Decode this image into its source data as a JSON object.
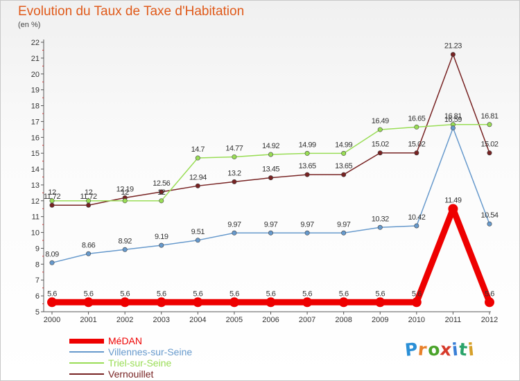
{
  "title": "Evolution du Taux de Taxe d'Habitation",
  "subtitle": "(en %)",
  "logo": {
    "letters": [
      "P",
      "r",
      "o",
      "x",
      "i",
      "t",
      "i"
    ],
    "colors": [
      "#2a8fd6",
      "#e8802a",
      "#4aa32a",
      "#d63a2a",
      "#3a7fd6",
      "#2aa36a",
      "#d6a02a"
    ]
  },
  "chart_data": {
    "type": "line",
    "title": "Evolution du Taux de Taxe d'Habitation",
    "ylabel": "(en %)",
    "xlabel": "",
    "x": [
      "2000",
      "2001",
      "2002",
      "2003",
      "2004",
      "2005",
      "2006",
      "2007",
      "2008",
      "2009",
      "2010",
      "2011",
      "2012"
    ],
    "ylim": [
      5,
      22
    ],
    "yticks": [
      "5",
      "6",
      "7",
      "8",
      "9",
      "10",
      "11",
      "12",
      "13",
      "14",
      "15",
      "16",
      "17",
      "18",
      "19",
      "20",
      "21",
      "22"
    ],
    "grid": false,
    "legend_position": "bottom-left",
    "series": [
      {
        "name": "MéDAN",
        "color": "#ee0000",
        "values": [
          5.6,
          5.6,
          5.6,
          5.6,
          5.6,
          5.6,
          5.6,
          5.6,
          5.6,
          5.6,
          5.6,
          11.49,
          5.6
        ],
        "labels": [
          "5.6",
          "5.6",
          "5.6",
          "5.6",
          "5.6",
          "5.6",
          "5.6",
          "5.6",
          "5.6",
          "5.6",
          "5.6",
          "11.49",
          "5.6"
        ]
      },
      {
        "name": "Villennes-sur-Seine",
        "color": "#6699cc",
        "values": [
          8.09,
          8.66,
          8.92,
          9.19,
          9.51,
          9.97,
          9.97,
          9.97,
          9.97,
          10.32,
          10.42,
          16.59,
          10.54
        ],
        "labels": [
          "8.09",
          "8.66",
          "8.92",
          "9.19",
          "9.51",
          "9.97",
          "9.97",
          "9.97",
          "9.97",
          "10.32",
          "10.42",
          "16.59",
          "10.54"
        ]
      },
      {
        "name": "Triel-sur-Seine",
        "color": "#99dd55",
        "values": [
          12,
          12,
          12,
          12,
          14.7,
          14.77,
          14.92,
          14.99,
          14.99,
          16.49,
          16.65,
          16.81,
          16.81
        ],
        "labels": [
          "12",
          "12",
          "12",
          "12",
          "14.7",
          "14.77",
          "14.92",
          "14.99",
          "14.99",
          "16.49",
          "16.65",
          "16.81",
          "16.81"
        ]
      },
      {
        "name": "Vernouillet",
        "color": "#772222",
        "values": [
          11.72,
          11.72,
          12.19,
          12.56,
          12.94,
          13.2,
          13.45,
          13.65,
          13.65,
          15.02,
          15.02,
          21.23,
          15.02
        ],
        "labels": [
          "11.72",
          "11.72",
          "12.19",
          "12.56",
          "12.94",
          "13.2",
          "13.45",
          "13.65",
          "13.65",
          "15.02",
          "15.02",
          "21.23",
          "15.02"
        ]
      }
    ]
  }
}
